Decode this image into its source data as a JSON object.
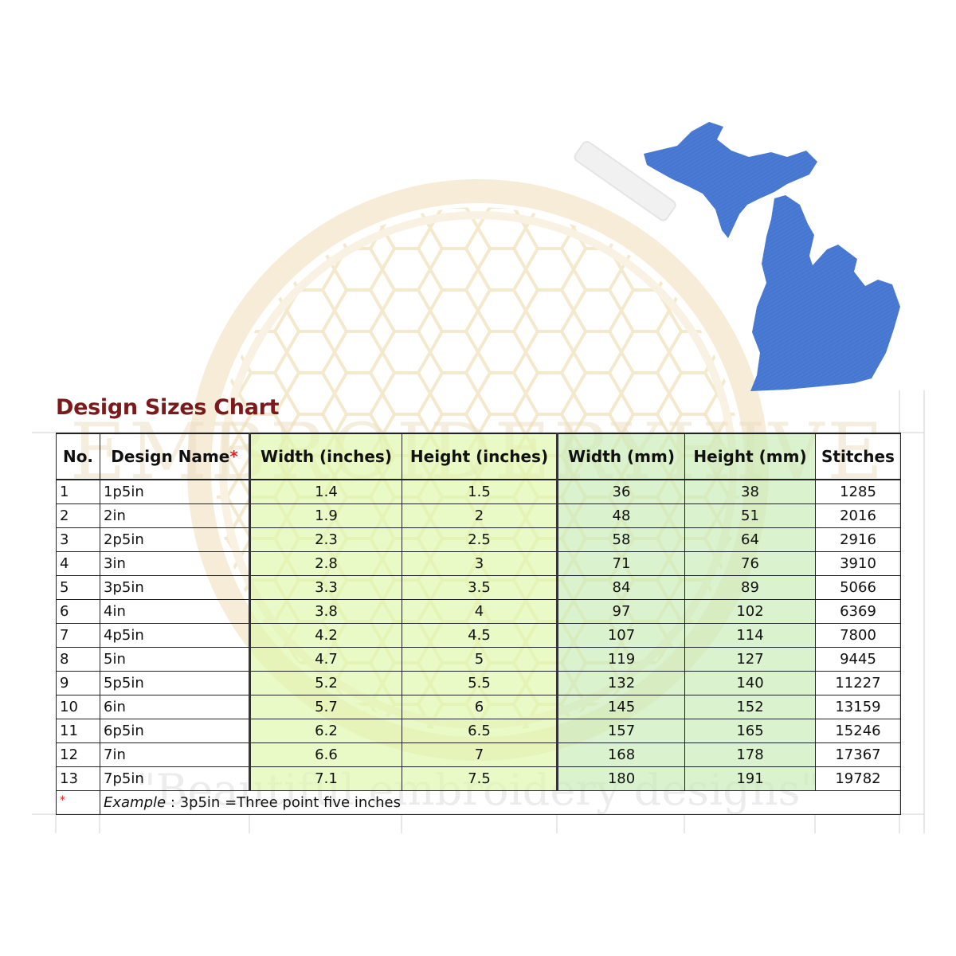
{
  "title": "Design Sizes Chart",
  "watermark": {
    "brand": "EMBROIDERYHIVE",
    "tagline": "\"Beautiful embroidery designs\""
  },
  "image": {
    "name": "Michigan state silhouette",
    "color": "#4a7bd4"
  },
  "colors": {
    "title": "#7b1a1a",
    "inches_fill": "#def8a8",
    "mm_fill": "#c8ecb4",
    "asterisk": "#e02020"
  },
  "table": {
    "headers": {
      "no": "No.",
      "design_name": "Design Name",
      "required_mark": "*",
      "width_in": "Width (inches)",
      "height_in": "Height (inches)",
      "width_mm": "Width (mm)",
      "height_mm": "Height (mm)",
      "stitches": "Stitches"
    },
    "rows": [
      {
        "no": "1",
        "name": "1p5in",
        "w_in": "1.4",
        "h_in": "1.5",
        "w_mm": "36",
        "h_mm": "38",
        "stitches": "1285"
      },
      {
        "no": "2",
        "name": "2in",
        "w_in": "1.9",
        "h_in": "2",
        "w_mm": "48",
        "h_mm": "51",
        "stitches": "2016"
      },
      {
        "no": "3",
        "name": "2p5in",
        "w_in": "2.3",
        "h_in": "2.5",
        "w_mm": "58",
        "h_mm": "64",
        "stitches": "2916"
      },
      {
        "no": "4",
        "name": "3in",
        "w_in": "2.8",
        "h_in": "3",
        "w_mm": "71",
        "h_mm": "76",
        "stitches": "3910"
      },
      {
        "no": "5",
        "name": "3p5in",
        "w_in": "3.3",
        "h_in": "3.5",
        "w_mm": "84",
        "h_mm": "89",
        "stitches": "5066"
      },
      {
        "no": "6",
        "name": "4in",
        "w_in": "3.8",
        "h_in": "4",
        "w_mm": "97",
        "h_mm": "102",
        "stitches": "6369"
      },
      {
        "no": "7",
        "name": "4p5in",
        "w_in": "4.2",
        "h_in": "4.5",
        "w_mm": "107",
        "h_mm": "114",
        "stitches": "7800"
      },
      {
        "no": "8",
        "name": "5in",
        "w_in": "4.7",
        "h_in": "5",
        "w_mm": "119",
        "h_mm": "127",
        "stitches": "9445"
      },
      {
        "no": "9",
        "name": "5p5in",
        "w_in": "5.2",
        "h_in": "5.5",
        "w_mm": "132",
        "h_mm": "140",
        "stitches": "11227"
      },
      {
        "no": "10",
        "name": "6in",
        "w_in": "5.7",
        "h_in": "6",
        "w_mm": "145",
        "h_mm": "152",
        "stitches": "13159"
      },
      {
        "no": "11",
        "name": "6p5in",
        "w_in": "6.2",
        "h_in": "6.5",
        "w_mm": "157",
        "h_mm": "165",
        "stitches": "15246"
      },
      {
        "no": "12",
        "name": "7in",
        "w_in": "6.6",
        "h_in": "7",
        "w_mm": "168",
        "h_mm": "178",
        "stitches": "17367"
      },
      {
        "no": "13",
        "name": "7p5in",
        "w_in": "7.1",
        "h_in": "7.5",
        "w_mm": "180",
        "h_mm": "191",
        "stitches": "19782"
      }
    ],
    "note": {
      "mark": "*",
      "label": "Example",
      "text": " : 3p5in =Three point five inches"
    }
  }
}
